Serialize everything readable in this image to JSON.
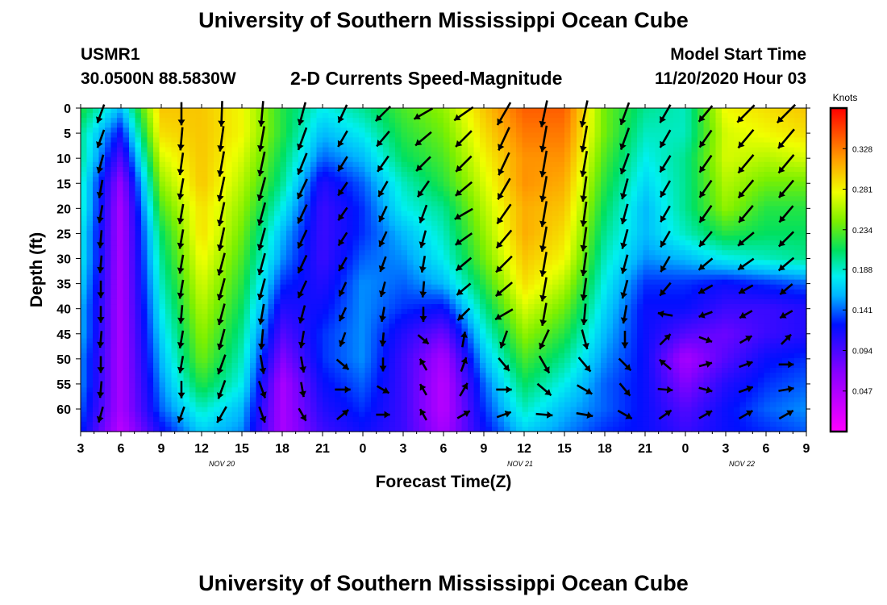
{
  "page": {
    "title_top": "University of Southern Mississippi Ocean Cube",
    "title_bottom": "University of Southern Mississippi Ocean Cube",
    "station_id": "USMR1",
    "station_coords": "30.0500N 88.5830W",
    "plot_title": "2-D Currents Speed-Magnitude",
    "model_start_label": "Model Start Time",
    "model_start_value": "11/20/2020 Hour 03"
  },
  "chart_data": {
    "type": "heatmap",
    "title": "2-D Currents Speed-Magnitude",
    "xlabel": "Forecast Time(Z)",
    "ylabel": "Depth (ft)",
    "x_ticks": [
      "3",
      "6",
      "9",
      "12",
      "15",
      "18",
      "21",
      "0",
      "3",
      "6",
      "9",
      "12",
      "15",
      "18",
      "21",
      "0",
      "3",
      "6",
      "9"
    ],
    "date_labels": [
      {
        "text": "NOV 20",
        "tick_index": 3.5
      },
      {
        "text": "NOV 21",
        "tick_index": 10.9
      },
      {
        "text": "NOV 22",
        "tick_index": 16.4
      }
    ],
    "y_ticks": [
      "0",
      "5",
      "10",
      "15",
      "20",
      "25",
      "30",
      "35",
      "40",
      "45",
      "50",
      "55",
      "60"
    ],
    "ylim": [
      0,
      64.5
    ],
    "xlim": [
      0,
      18
    ],
    "colorbar": {
      "label": "Knots",
      "range": [
        0,
        0.375
      ],
      "ticks": [
        "0.047",
        "0.094",
        "0.141",
        "0.188",
        "0.234",
        "0.281",
        "0.328"
      ]
    },
    "speed_grid": {
      "x_hours_from_start": [
        0,
        3,
        6,
        9,
        12,
        15,
        18,
        21,
        24,
        27,
        30,
        33,
        36,
        39,
        42,
        45,
        48,
        51,
        54
      ],
      "depths_ft": [
        0,
        5,
        10,
        15,
        20,
        25,
        30,
        35,
        40,
        45,
        50,
        55,
        60,
        64
      ],
      "knots": [
        [
          0.22,
          0.16,
          0.3,
          0.3,
          0.28,
          0.22,
          0.18,
          0.2,
          0.23,
          0.25,
          0.3,
          0.34,
          0.34,
          0.24,
          0.2,
          0.19,
          0.28,
          0.29,
          0.3
        ],
        [
          0.2,
          0.12,
          0.29,
          0.3,
          0.28,
          0.22,
          0.16,
          0.18,
          0.22,
          0.24,
          0.29,
          0.33,
          0.33,
          0.24,
          0.19,
          0.19,
          0.27,
          0.28,
          0.29
        ],
        [
          0.2,
          0.09,
          0.27,
          0.3,
          0.27,
          0.21,
          0.14,
          0.16,
          0.21,
          0.23,
          0.28,
          0.32,
          0.32,
          0.23,
          0.18,
          0.2,
          0.27,
          0.26,
          0.27
        ],
        [
          0.19,
          0.06,
          0.25,
          0.3,
          0.26,
          0.2,
          0.11,
          0.14,
          0.19,
          0.22,
          0.27,
          0.32,
          0.31,
          0.22,
          0.17,
          0.2,
          0.26,
          0.24,
          0.24
        ],
        [
          0.19,
          0.05,
          0.23,
          0.29,
          0.25,
          0.18,
          0.1,
          0.13,
          0.18,
          0.2,
          0.26,
          0.31,
          0.3,
          0.21,
          0.16,
          0.2,
          0.25,
          0.22,
          0.22
        ],
        [
          0.18,
          0.05,
          0.21,
          0.29,
          0.24,
          0.16,
          0.1,
          0.13,
          0.16,
          0.19,
          0.25,
          0.31,
          0.29,
          0.2,
          0.16,
          0.19,
          0.22,
          0.21,
          0.21
        ],
        [
          0.18,
          0.05,
          0.2,
          0.28,
          0.23,
          0.15,
          0.1,
          0.14,
          0.15,
          0.18,
          0.24,
          0.3,
          0.28,
          0.19,
          0.15,
          0.16,
          0.18,
          0.19,
          0.2
        ],
        [
          0.17,
          0.05,
          0.19,
          0.27,
          0.22,
          0.13,
          0.11,
          0.15,
          0.14,
          0.16,
          0.22,
          0.29,
          0.26,
          0.18,
          0.13,
          0.13,
          0.12,
          0.13,
          0.14
        ],
        [
          0.16,
          0.05,
          0.18,
          0.26,
          0.21,
          0.11,
          0.12,
          0.15,
          0.13,
          0.12,
          0.2,
          0.27,
          0.24,
          0.17,
          0.12,
          0.12,
          0.1,
          0.1,
          0.11
        ],
        [
          0.16,
          0.05,
          0.17,
          0.25,
          0.2,
          0.09,
          0.13,
          0.15,
          0.11,
          0.08,
          0.18,
          0.25,
          0.22,
          0.16,
          0.12,
          0.09,
          0.08,
          0.1,
          0.11
        ],
        [
          0.15,
          0.05,
          0.16,
          0.24,
          0.19,
          0.07,
          0.13,
          0.15,
          0.1,
          0.05,
          0.16,
          0.23,
          0.2,
          0.15,
          0.12,
          0.05,
          0.09,
          0.12,
          0.13
        ],
        [
          0.15,
          0.05,
          0.15,
          0.22,
          0.18,
          0.05,
          0.12,
          0.14,
          0.1,
          0.04,
          0.14,
          0.21,
          0.18,
          0.14,
          0.12,
          0.07,
          0.11,
          0.13,
          0.14
        ],
        [
          0.14,
          0.05,
          0.14,
          0.19,
          0.16,
          0.05,
          0.11,
          0.13,
          0.1,
          0.04,
          0.13,
          0.19,
          0.16,
          0.14,
          0.12,
          0.09,
          0.12,
          0.14,
          0.15
        ],
        [
          0.13,
          0.04,
          0.12,
          0.17,
          0.15,
          0.05,
          0.1,
          0.12,
          0.1,
          0.05,
          0.12,
          0.17,
          0.15,
          0.13,
          0.12,
          0.1,
          0.12,
          0.13,
          0.14
        ]
      ]
    },
    "vectors": {
      "x_hours_from_start": [
        1.5,
        7.5,
        10.5,
        13.5,
        16.5,
        19.5,
        22.5,
        25.5,
        28.5,
        31.5,
        34.5,
        37.5,
        40.5,
        43.5,
        46.5,
        49.5,
        52.5
      ],
      "depths_ft": [
        0,
        5,
        10,
        15,
        20,
        25,
        30,
        35,
        40,
        45,
        50,
        55,
        60
      ],
      "direction_deg": [
        [
          200,
          180,
          182,
          185,
          195,
          205,
          225,
          240,
          235,
          210,
          192,
          192,
          200,
          210,
          220,
          225,
          225
        ],
        [
          200,
          185,
          188,
          190,
          200,
          210,
          220,
          230,
          225,
          205,
          190,
          190,
          200,
          210,
          215,
          220,
          220
        ],
        [
          195,
          188,
          190,
          192,
          202,
          212,
          215,
          225,
          225,
          205,
          190,
          190,
          200,
          212,
          215,
          220,
          220
        ],
        [
          190,
          190,
          192,
          195,
          205,
          215,
          210,
          215,
          230,
          210,
          190,
          188,
          195,
          210,
          215,
          220,
          220
        ],
        [
          190,
          190,
          192,
          195,
          205,
          215,
          205,
          200,
          240,
          215,
          190,
          188,
          195,
          210,
          215,
          220,
          220
        ],
        [
          185,
          190,
          192,
          195,
          205,
          213,
          205,
          195,
          235,
          220,
          190,
          188,
          195,
          210,
          220,
          230,
          225
        ],
        [
          185,
          190,
          195,
          195,
          205,
          210,
          200,
          190,
          230,
          225,
          190,
          188,
          195,
          210,
          230,
          235,
          230
        ],
        [
          180,
          190,
          195,
          195,
          205,
          205,
          195,
          185,
          230,
          230,
          190,
          188,
          195,
          220,
          240,
          240,
          230
        ],
        [
          180,
          185,
          195,
          190,
          195,
          205,
          190,
          180,
          225,
          240,
          190,
          185,
          190,
          280,
          250,
          240,
          240
        ],
        [
          185,
          190,
          195,
          185,
          190,
          200,
          185,
          130,
          10,
          200,
          205,
          165,
          180,
          45,
          110,
          60,
          45
        ],
        [
          180,
          190,
          200,
          170,
          170,
          130,
          180,
          330,
          20,
          140,
          150,
          140,
          135,
          310,
          75,
          70,
          90
        ],
        [
          185,
          180,
          200,
          160,
          170,
          90,
          120,
          330,
          30,
          90,
          130,
          120,
          140,
          95,
          105,
          70,
          80
        ],
        [
          195,
          200,
          210,
          160,
          150,
          50,
          90,
          330,
          60,
          70,
          95,
          100,
          120,
          55,
          60,
          60,
          60
        ]
      ],
      "speed_knots": [
        [
          0.2,
          0.26,
          0.3,
          0.3,
          0.27,
          0.2,
          0.22,
          0.23,
          0.26,
          0.31,
          0.33,
          0.33,
          0.27,
          0.22,
          0.22,
          0.28,
          0.3
        ],
        [
          0.19,
          0.26,
          0.3,
          0.3,
          0.27,
          0.18,
          0.2,
          0.22,
          0.25,
          0.3,
          0.32,
          0.32,
          0.26,
          0.21,
          0.22,
          0.27,
          0.29
        ],
        [
          0.19,
          0.25,
          0.3,
          0.29,
          0.26,
          0.16,
          0.19,
          0.21,
          0.24,
          0.29,
          0.32,
          0.31,
          0.24,
          0.2,
          0.22,
          0.27,
          0.27
        ],
        [
          0.18,
          0.23,
          0.29,
          0.28,
          0.24,
          0.14,
          0.17,
          0.2,
          0.23,
          0.28,
          0.31,
          0.3,
          0.23,
          0.19,
          0.22,
          0.26,
          0.25
        ],
        [
          0.17,
          0.21,
          0.28,
          0.27,
          0.22,
          0.13,
          0.16,
          0.19,
          0.22,
          0.27,
          0.31,
          0.29,
          0.22,
          0.18,
          0.22,
          0.24,
          0.23
        ],
        [
          0.17,
          0.2,
          0.27,
          0.26,
          0.21,
          0.13,
          0.15,
          0.17,
          0.21,
          0.26,
          0.3,
          0.28,
          0.21,
          0.18,
          0.2,
          0.22,
          0.22
        ],
        [
          0.16,
          0.19,
          0.26,
          0.25,
          0.2,
          0.13,
          0.14,
          0.15,
          0.2,
          0.25,
          0.29,
          0.27,
          0.2,
          0.17,
          0.17,
          0.19,
          0.2
        ],
        [
          0.16,
          0.19,
          0.25,
          0.24,
          0.19,
          0.13,
          0.13,
          0.14,
          0.17,
          0.23,
          0.28,
          0.25,
          0.19,
          0.15,
          0.14,
          0.14,
          0.14
        ],
        [
          0.15,
          0.18,
          0.24,
          0.22,
          0.18,
          0.12,
          0.12,
          0.12,
          0.15,
          0.21,
          0.26,
          0.23,
          0.18,
          0.12,
          0.11,
          0.11,
          0.11
        ],
        [
          0.15,
          0.17,
          0.23,
          0.21,
          0.16,
          0.12,
          0.1,
          0.1,
          0.13,
          0.18,
          0.23,
          0.21,
          0.16,
          0.12,
          0.1,
          0.1,
          0.1
        ],
        [
          0.15,
          0.16,
          0.22,
          0.19,
          0.14,
          0.13,
          0.1,
          0.09,
          0.12,
          0.15,
          0.2,
          0.18,
          0.15,
          0.12,
          0.09,
          0.11,
          0.12
        ],
        [
          0.15,
          0.16,
          0.2,
          0.17,
          0.12,
          0.13,
          0.1,
          0.08,
          0.12,
          0.13,
          0.17,
          0.16,
          0.14,
          0.12,
          0.1,
          0.12,
          0.13
        ],
        [
          0.14,
          0.15,
          0.18,
          0.15,
          0.11,
          0.12,
          0.1,
          0.08,
          0.11,
          0.12,
          0.15,
          0.15,
          0.14,
          0.12,
          0.12,
          0.13,
          0.14
        ]
      ]
    }
  }
}
